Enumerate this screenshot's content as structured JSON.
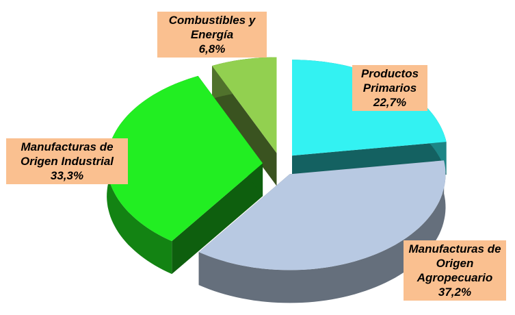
{
  "chart_data": {
    "type": "pie",
    "categories": [
      "Productos Primarios",
      "Manufacturas de Origen Agropecuario",
      "Manufacturas de Origen Industrial",
      "Combustibles y Energía"
    ],
    "values": [
      22.7,
      37.2,
      33.3,
      6.8
    ],
    "value_labels": [
      "22,7%",
      "37,2%",
      "33,3%",
      "6,8%"
    ],
    "colors": [
      "#33f2f2",
      "#b8c9e2",
      "#22ee22",
      "#92d050"
    ]
  }
}
